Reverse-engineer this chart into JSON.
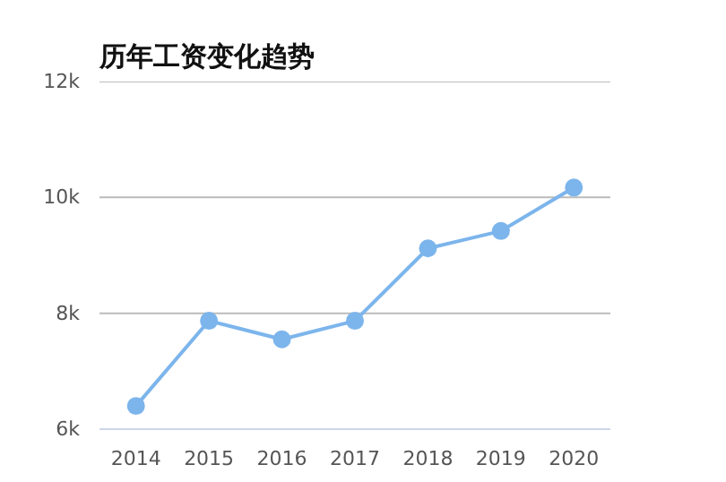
{
  "chart_data": {
    "type": "line",
    "title": "历年工资变化趋势",
    "categories": [
      "2014",
      "2015",
      "2016",
      "2017",
      "2018",
      "2019",
      "2020"
    ],
    "series": [
      {
        "color": "#7cb5ec",
        "values": [
          6400,
          7870,
          7550,
          7870,
          9120,
          9420,
          10170
        ]
      }
    ],
    "ylim": [
      6000,
      12000
    ],
    "yticks": [
      {
        "value": 6000,
        "label": "6k"
      },
      {
        "value": 8000,
        "label": "8k"
      },
      {
        "value": 10000,
        "label": "10k"
      },
      {
        "value": 12000,
        "label": "12k"
      }
    ],
    "grid": "y",
    "marker": "circle",
    "line_style": "solid"
  }
}
